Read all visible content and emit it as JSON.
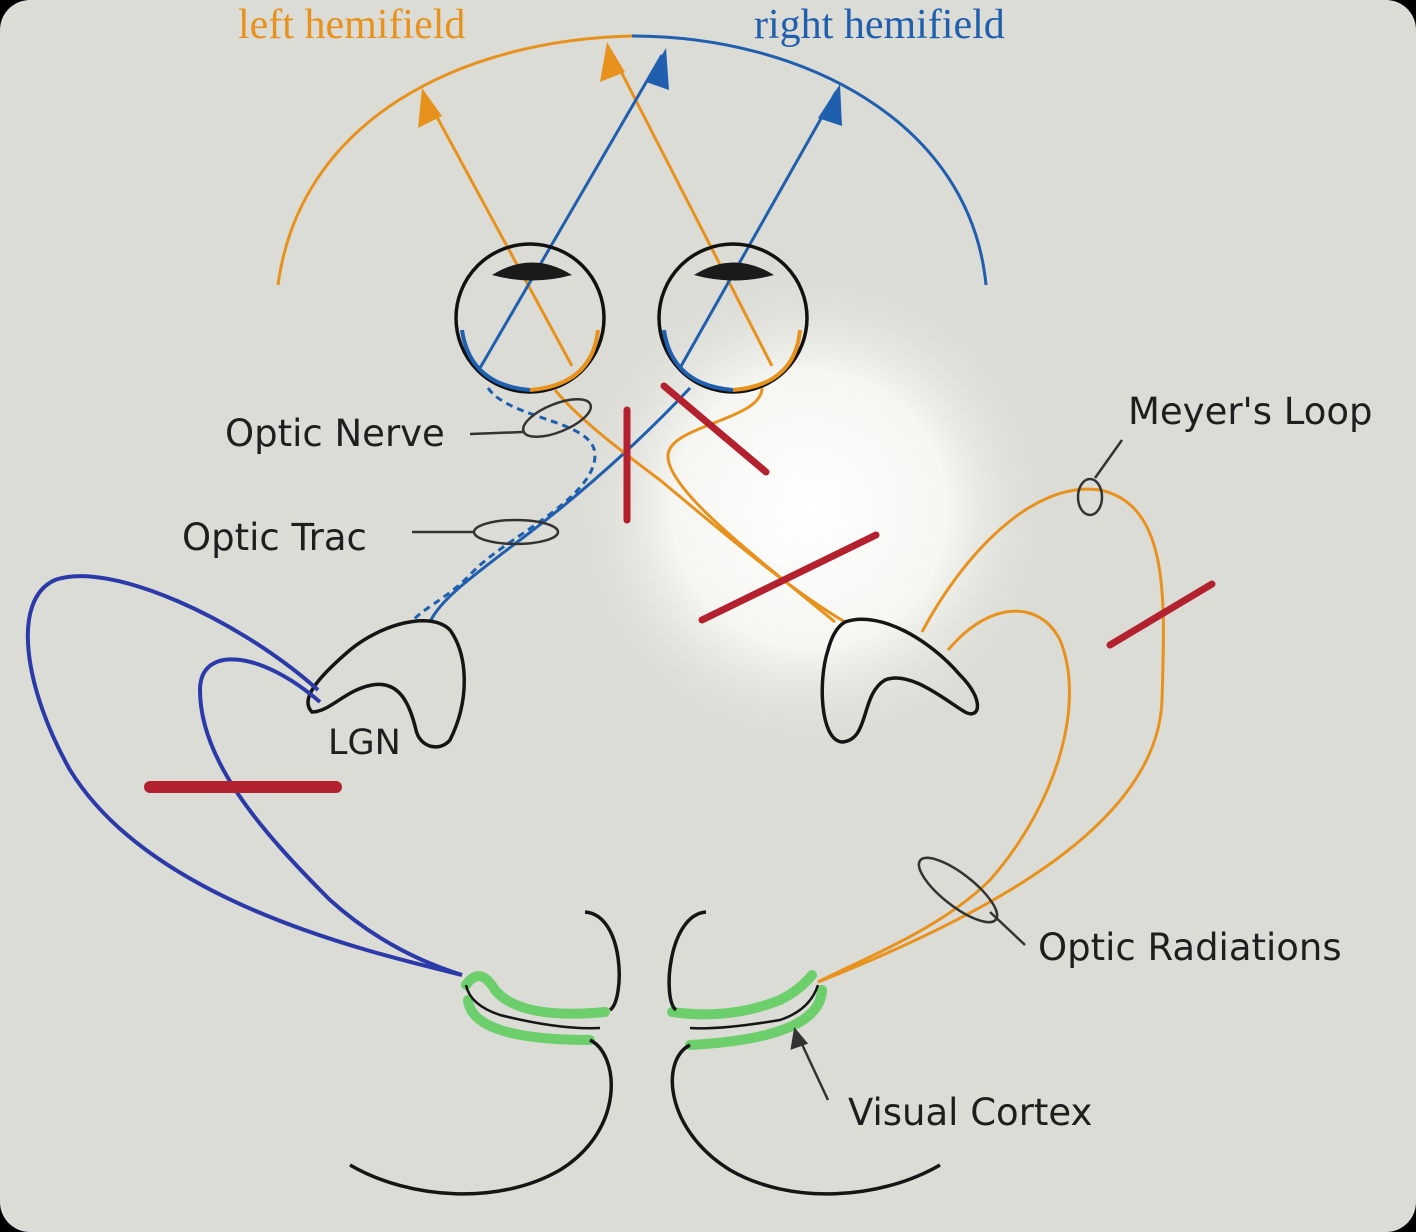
{
  "labels": {
    "left_hemifield": "left hemifield",
    "right_hemifield": "right hemifield",
    "optic_nerve": "Optic Nerve",
    "optic_trac": "Optic Trac",
    "meyers_loop": "Meyer's Loop",
    "lgn": "LGN",
    "optic_radiations": "Optic Radiations",
    "visual_cortex": "Visual Cortex"
  },
  "colors": {
    "left_field": "#e8921e",
    "right_field": "#1f5fae",
    "left_radiation": "#2b3aa8",
    "lesion": "#b3202e",
    "cortex": "#6ccf6c",
    "outline": "#151515",
    "background": "#dcdcd7"
  },
  "lesions": {
    "count": 5,
    "sites": [
      "right optic nerve",
      "optic chiasm",
      "right optic tract",
      "right Meyer's loop",
      "left optic radiation"
    ]
  }
}
